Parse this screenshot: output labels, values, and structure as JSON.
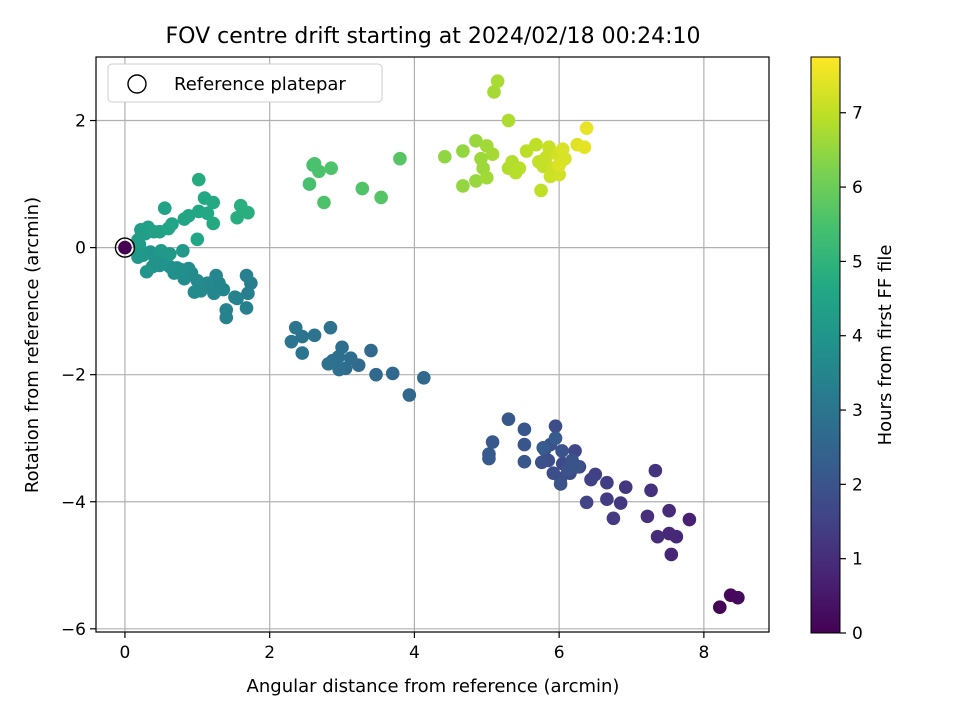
{
  "chart_data": {
    "type": "scatter",
    "title": "FOV centre drift starting at 2024/02/18 00:24:10",
    "xlabel": "Angular distance from reference (arcmin)",
    "ylabel": "Rotation from reference (arcmin)",
    "xlim": [
      -0.4,
      8.9
    ],
    "ylim": [
      -6.05,
      3.0
    ],
    "xticks": [
      0,
      2,
      4,
      6,
      8
    ],
    "yticks": [
      -6,
      -4,
      -2,
      0,
      2
    ],
    "grid": true,
    "legend": {
      "placement": "top-left",
      "entries": [
        "Reference platepar"
      ]
    },
    "reference_point": {
      "x": 0,
      "y": 0,
      "label": "Reference platepar"
    },
    "colorbar": {
      "label": "Hours from first FF file",
      "range": [
        0,
        7.75
      ],
      "ticks": [
        0,
        1,
        2,
        3,
        4,
        5,
        6,
        7
      ],
      "colormap": "viridis"
    },
    "points": [
      {
        "x": 8.22,
        "y": -5.66,
        "c": 0.1
      },
      {
        "x": 8.37,
        "y": -5.47,
        "c": 0.15
      },
      {
        "x": 8.47,
        "y": -5.51,
        "c": 0.2
      },
      {
        "x": 7.8,
        "y": -4.28,
        "c": 0.7
      },
      {
        "x": 7.55,
        "y": -4.83,
        "c": 0.8
      },
      {
        "x": 7.62,
        "y": -4.55,
        "c": 0.85
      },
      {
        "x": 7.52,
        "y": -4.5,
        "c": 0.9
      },
      {
        "x": 7.52,
        "y": -4.14,
        "c": 0.95
      },
      {
        "x": 7.36,
        "y": -4.55,
        "c": 1.0
      },
      {
        "x": 7.22,
        "y": -4.23,
        "c": 1.05
      },
      {
        "x": 7.27,
        "y": -3.82,
        "c": 1.1
      },
      {
        "x": 7.33,
        "y": -3.51,
        "c": 1.15
      },
      {
        "x": 6.92,
        "y": -3.77,
        "c": 1.2
      },
      {
        "x": 6.85,
        "y": -4.02,
        "c": 1.25
      },
      {
        "x": 6.75,
        "y": -4.26,
        "c": 1.3
      },
      {
        "x": 6.66,
        "y": -3.96,
        "c": 1.35
      },
      {
        "x": 6.66,
        "y": -3.7,
        "c": 1.4
      },
      {
        "x": 6.5,
        "y": -3.57,
        "c": 1.45
      },
      {
        "x": 6.44,
        "y": -3.65,
        "c": 1.5
      },
      {
        "x": 6.38,
        "y": -4.01,
        "c": 1.55
      },
      {
        "x": 6.28,
        "y": -3.45,
        "c": 1.6
      },
      {
        "x": 6.22,
        "y": -3.2,
        "c": 1.65
      },
      {
        "x": 6.15,
        "y": -3.55,
        "c": 1.7
      },
      {
        "x": 6.05,
        "y": -3.4,
        "c": 1.75
      },
      {
        "x": 6.02,
        "y": -3.63,
        "c": 1.8
      },
      {
        "x": 5.95,
        "y": -2.81,
        "c": 1.8
      },
      {
        "x": 5.92,
        "y": -3.55,
        "c": 1.85
      },
      {
        "x": 5.85,
        "y": -3.35,
        "c": 1.85
      },
      {
        "x": 5.8,
        "y": -3.18,
        "c": 1.9
      },
      {
        "x": 5.76,
        "y": -3.38,
        "c": 1.9
      },
      {
        "x": 5.88,
        "y": -3.1,
        "c": 1.9
      },
      {
        "x": 6.04,
        "y": -3.2,
        "c": 1.95
      },
      {
        "x": 6.12,
        "y": -3.5,
        "c": 1.95
      },
      {
        "x": 6.18,
        "y": -3.35,
        "c": 2.0
      },
      {
        "x": 6.25,
        "y": -3.45,
        "c": 2.0
      },
      {
        "x": 6.02,
        "y": -3.72,
        "c": 2.0
      },
      {
        "x": 5.52,
        "y": -2.86,
        "c": 2.05
      },
      {
        "x": 5.52,
        "y": -3.1,
        "c": 2.05
      },
      {
        "x": 5.52,
        "y": -3.37,
        "c": 2.1
      },
      {
        "x": 5.3,
        "y": -2.7,
        "c": 2.1
      },
      {
        "x": 5.08,
        "y": -3.06,
        "c": 2.15
      },
      {
        "x": 5.03,
        "y": -3.25,
        "c": 2.15
      },
      {
        "x": 5.03,
        "y": -3.32,
        "c": 2.2
      },
      {
        "x": 5.95,
        "y": -3.0,
        "c": 2.2
      },
      {
        "x": 5.78,
        "y": -3.15,
        "c": 2.2
      },
      {
        "x": 4.13,
        "y": -2.05,
        "c": 2.6
      },
      {
        "x": 3.93,
        "y": -2.32,
        "c": 2.6
      },
      {
        "x": 3.7,
        "y": -1.98,
        "c": 2.65
      },
      {
        "x": 3.47,
        "y": -2.0,
        "c": 2.65
      },
      {
        "x": 3.4,
        "y": -1.62,
        "c": 2.7
      },
      {
        "x": 3.23,
        "y": -1.85,
        "c": 2.7
      },
      {
        "x": 3.12,
        "y": -1.74,
        "c": 2.75
      },
      {
        "x": 3.05,
        "y": -1.9,
        "c": 2.75
      },
      {
        "x": 3.0,
        "y": -1.57,
        "c": 2.8
      },
      {
        "x": 2.95,
        "y": -1.72,
        "c": 2.8
      },
      {
        "x": 2.96,
        "y": -1.92,
        "c": 2.85
      },
      {
        "x": 2.87,
        "y": -1.78,
        "c": 2.85
      },
      {
        "x": 2.81,
        "y": -1.83,
        "c": 2.9
      },
      {
        "x": 2.84,
        "y": -1.26,
        "c": 2.9
      },
      {
        "x": 2.62,
        "y": -1.38,
        "c": 2.95
      },
      {
        "x": 2.45,
        "y": -1.4,
        "c": 2.95
      },
      {
        "x": 2.45,
        "y": -1.66,
        "c": 3.0
      },
      {
        "x": 2.36,
        "y": -1.26,
        "c": 3.0
      },
      {
        "x": 2.3,
        "y": -1.48,
        "c": 3.05
      },
      {
        "x": 1.74,
        "y": -0.56,
        "c": 3.3
      },
      {
        "x": 1.7,
        "y": -0.72,
        "c": 3.3
      },
      {
        "x": 1.68,
        "y": -0.95,
        "c": 3.35
      },
      {
        "x": 1.68,
        "y": -0.44,
        "c": 3.35
      },
      {
        "x": 1.55,
        "y": -0.8,
        "c": 3.4
      },
      {
        "x": 1.52,
        "y": -0.78,
        "c": 3.4
      },
      {
        "x": 1.4,
        "y": -0.98,
        "c": 3.45
      },
      {
        "x": 1.4,
        "y": -1.1,
        "c": 3.45
      },
      {
        "x": 1.36,
        "y": -0.66,
        "c": 3.5
      },
      {
        "x": 1.3,
        "y": -0.56,
        "c": 3.5
      },
      {
        "x": 1.26,
        "y": -0.44,
        "c": 3.55
      },
      {
        "x": 1.23,
        "y": -0.72,
        "c": 3.55
      },
      {
        "x": 1.14,
        "y": -0.56,
        "c": 3.6
      },
      {
        "x": 1.08,
        "y": -0.63,
        "c": 3.6
      },
      {
        "x": 1.05,
        "y": -0.68,
        "c": 3.65
      },
      {
        "x": 1.0,
        "y": -0.52,
        "c": 3.65
      },
      {
        "x": 0.96,
        "y": -0.7,
        "c": 3.7
      },
      {
        "x": 0.92,
        "y": -0.4,
        "c": 3.7
      },
      {
        "x": 0.88,
        "y": -0.33,
        "c": 3.75
      },
      {
        "x": 0.82,
        "y": -0.49,
        "c": 3.75
      },
      {
        "x": 0.78,
        "y": -0.35,
        "c": 3.8
      },
      {
        "x": 0.72,
        "y": -0.32,
        "c": 3.8
      },
      {
        "x": 0.68,
        "y": -0.4,
        "c": 3.85
      },
      {
        "x": 0.62,
        "y": -0.3,
        "c": 3.85
      },
      {
        "x": 0.55,
        "y": -0.22,
        "c": 3.9
      },
      {
        "x": 0.48,
        "y": -0.28,
        "c": 3.9
      },
      {
        "x": 0.42,
        "y": -0.18,
        "c": 3.95
      },
      {
        "x": 0.38,
        "y": -0.3,
        "c": 3.95
      },
      {
        "x": 0.35,
        "y": -0.07,
        "c": 4.0
      },
      {
        "x": 0.3,
        "y": -0.38,
        "c": 4.0
      },
      {
        "x": 0.25,
        "y": -0.12,
        "c": 4.05
      },
      {
        "x": 0.22,
        "y": -0.05,
        "c": 4.05
      },
      {
        "x": 0.18,
        "y": -0.15,
        "c": 4.1
      },
      {
        "x": 0.8,
        "y": -0.05,
        "c": 4.1
      },
      {
        "x": 0.62,
        "y": -0.1,
        "c": 4.15
      },
      {
        "x": 0.5,
        "y": -0.05,
        "c": 4.15
      },
      {
        "x": 0.2,
        "y": 0.05,
        "c": 4.2
      },
      {
        "x": 0.18,
        "y": 0.12,
        "c": 4.25
      },
      {
        "x": 0.22,
        "y": 0.28,
        "c": 4.3
      },
      {
        "x": 0.28,
        "y": 0.22,
        "c": 4.3
      },
      {
        "x": 0.32,
        "y": 0.32,
        "c": 4.35
      },
      {
        "x": 0.4,
        "y": 0.25,
        "c": 4.4
      },
      {
        "x": 0.48,
        "y": 0.25,
        "c": 4.4
      },
      {
        "x": 0.55,
        "y": 0.62,
        "c": 4.45
      },
      {
        "x": 0.6,
        "y": 0.3,
        "c": 4.5
      },
      {
        "x": 0.65,
        "y": 0.37,
        "c": 4.5
      },
      {
        "x": 0.82,
        "y": 0.45,
        "c": 4.55
      },
      {
        "x": 0.88,
        "y": 0.5,
        "c": 4.55
      },
      {
        "x": 1.0,
        "y": 0.13,
        "c": 4.6
      },
      {
        "x": 1.02,
        "y": 0.57,
        "c": 4.6
      },
      {
        "x": 1.1,
        "y": 0.78,
        "c": 4.65
      },
      {
        "x": 1.14,
        "y": 0.54,
        "c": 4.65
      },
      {
        "x": 1.22,
        "y": 0.71,
        "c": 4.7
      },
      {
        "x": 1.22,
        "y": 0.38,
        "c": 4.7
      },
      {
        "x": 1.02,
        "y": 1.07,
        "c": 4.75
      },
      {
        "x": 1.55,
        "y": 0.47,
        "c": 4.8
      },
      {
        "x": 1.6,
        "y": 0.66,
        "c": 4.85
      },
      {
        "x": 1.7,
        "y": 0.55,
        "c": 4.85
      },
      {
        "x": 2.55,
        "y": 1.0,
        "c": 5.45
      },
      {
        "x": 2.6,
        "y": 1.3,
        "c": 5.45
      },
      {
        "x": 2.68,
        "y": 1.2,
        "c": 5.5
      },
      {
        "x": 2.62,
        "y": 1.32,
        "c": 5.5
      },
      {
        "x": 2.75,
        "y": 0.71,
        "c": 5.55
      },
      {
        "x": 2.85,
        "y": 1.25,
        "c": 5.55
      },
      {
        "x": 3.28,
        "y": 0.93,
        "c": 5.6
      },
      {
        "x": 3.54,
        "y": 0.79,
        "c": 5.65
      },
      {
        "x": 3.8,
        "y": 1.4,
        "c": 5.7
      },
      {
        "x": 4.42,
        "y": 1.43,
        "c": 6.45
      },
      {
        "x": 4.67,
        "y": 1.52,
        "c": 6.5
      },
      {
        "x": 4.67,
        "y": 0.97,
        "c": 6.5
      },
      {
        "x": 4.85,
        "y": 1.68,
        "c": 6.55
      },
      {
        "x": 4.85,
        "y": 1.05,
        "c": 6.55
      },
      {
        "x": 4.92,
        "y": 1.4,
        "c": 6.6
      },
      {
        "x": 4.95,
        "y": 1.25,
        "c": 6.6
      },
      {
        "x": 5.0,
        "y": 1.6,
        "c": 6.65
      },
      {
        "x": 5.0,
        "y": 1.1,
        "c": 6.65
      },
      {
        "x": 5.1,
        "y": 2.45,
        "c": 6.7
      },
      {
        "x": 5.08,
        "y": 1.47,
        "c": 6.7
      },
      {
        "x": 5.15,
        "y": 2.62,
        "c": 6.75
      },
      {
        "x": 5.3,
        "y": 2.0,
        "c": 6.8
      },
      {
        "x": 5.3,
        "y": 1.25,
        "c": 6.85
      },
      {
        "x": 5.35,
        "y": 1.35,
        "c": 6.85
      },
      {
        "x": 5.4,
        "y": 1.18,
        "c": 6.9
      },
      {
        "x": 5.45,
        "y": 1.25,
        "c": 6.9
      },
      {
        "x": 5.55,
        "y": 1.52,
        "c": 6.95
      },
      {
        "x": 5.68,
        "y": 1.62,
        "c": 7.0
      },
      {
        "x": 5.75,
        "y": 0.9,
        "c": 7.0
      },
      {
        "x": 5.72,
        "y": 1.35,
        "c": 7.05
      },
      {
        "x": 5.78,
        "y": 1.28,
        "c": 7.05
      },
      {
        "x": 5.82,
        "y": 1.42,
        "c": 7.1
      },
      {
        "x": 5.86,
        "y": 1.58,
        "c": 7.1
      },
      {
        "x": 5.88,
        "y": 1.12,
        "c": 7.15
      },
      {
        "x": 5.92,
        "y": 1.25,
        "c": 7.15
      },
      {
        "x": 5.98,
        "y": 1.47,
        "c": 7.2
      },
      {
        "x": 6.0,
        "y": 1.15,
        "c": 7.2
      },
      {
        "x": 6.02,
        "y": 1.35,
        "c": 7.25
      },
      {
        "x": 6.05,
        "y": 1.55,
        "c": 7.3
      },
      {
        "x": 6.08,
        "y": 1.4,
        "c": 7.3
      },
      {
        "x": 6.0,
        "y": 1.3,
        "c": 7.35
      },
      {
        "x": 6.25,
        "y": 1.62,
        "c": 7.4
      },
      {
        "x": 6.35,
        "y": 1.58,
        "c": 7.45
      },
      {
        "x": 6.38,
        "y": 1.88,
        "c": 7.5
      },
      {
        "x": 0,
        "y": 0,
        "c": 0
      }
    ]
  }
}
